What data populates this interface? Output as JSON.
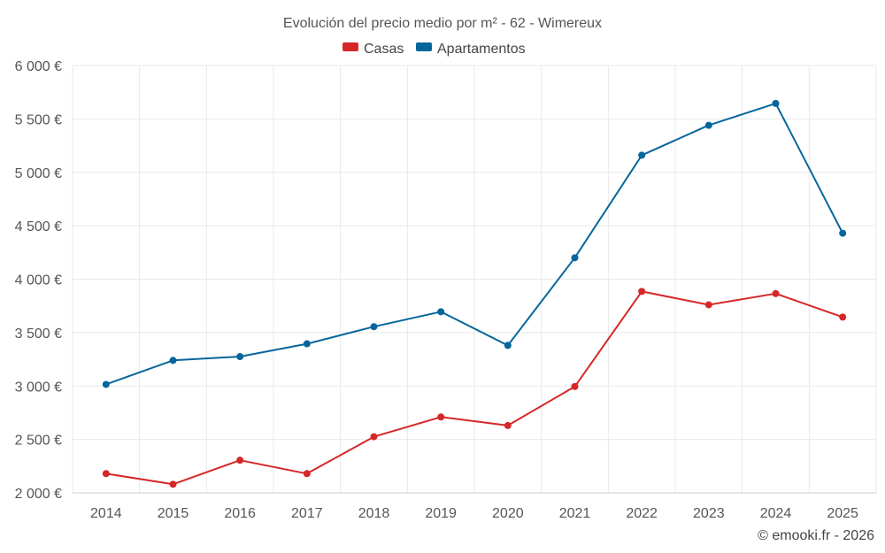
{
  "chart_data": {
    "type": "line",
    "title": "Evolución del precio medio por m² - 62 - Wimereux",
    "categories": [
      "2014",
      "2015",
      "2016",
      "2017",
      "2018",
      "2019",
      "2020",
      "2021",
      "2022",
      "2023",
      "2024",
      "2025"
    ],
    "series": [
      {
        "name": "Casas",
        "color": "#d62728",
        "values": [
          2180,
          2080,
          2305,
          2180,
          2525,
          2710,
          2630,
          2995,
          3885,
          3760,
          3865,
          3645
        ]
      },
      {
        "name": "Apartamentos",
        "color": "#06669c",
        "values": [
          3015,
          3240,
          3275,
          3395,
          3555,
          3695,
          3380,
          4200,
          5160,
          5440,
          5645,
          4430
        ]
      }
    ],
    "ylim": [
      2000,
      6000
    ],
    "yticks": [
      2000,
      2500,
      3000,
      3500,
      4000,
      4500,
      5000,
      5500,
      6000
    ],
    "ytick_labels": [
      "2 000 €",
      "2 500 €",
      "3 000 €",
      "3 500 €",
      "4 000 €",
      "4 500 €",
      "5 000 €",
      "5 500 €",
      "6 000 €"
    ],
    "xlabel": "",
    "ylabel": "",
    "legend_position": "top-center",
    "grid": true
  },
  "credit": "© emooki.fr - 2026"
}
